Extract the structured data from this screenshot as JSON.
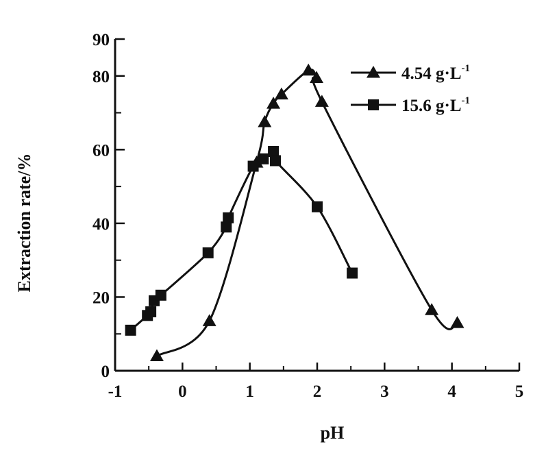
{
  "chart_data": {
    "type": "line",
    "xlabel": "pH",
    "ylabel": "Extraction rate/%",
    "xlim": [
      -1,
      5
    ],
    "ylim": [
      0,
      90
    ],
    "x_ticks": [
      "-1",
      "0",
      "1",
      "2",
      "3",
      "4",
      "5"
    ],
    "y_ticks": [
      "0",
      "20",
      "40",
      "60",
      "80",
      "90"
    ],
    "grid": false,
    "legend_position": "top-right",
    "series": [
      {
        "name": "4.54 g·L",
        "name_sup": "-1",
        "marker": "triangle",
        "x": [
          -0.38,
          0.4,
          1.1,
          1.22,
          1.35,
          1.47,
          1.87,
          1.99,
          2.07,
          3.7,
          4.08
        ],
        "y": [
          4,
          13.5,
          56.5,
          67.5,
          72.5,
          75,
          81.5,
          79.5,
          73,
          16.5,
          13
        ]
      },
      {
        "name": "15.6 g·L",
        "name_sup": "-1",
        "marker": "square",
        "x": [
          -0.77,
          -0.52,
          -0.47,
          -0.42,
          -0.32,
          0.38,
          0.65,
          0.68,
          1.05,
          1.2,
          1.35,
          1.38,
          2.0,
          2.52
        ],
        "y": [
          11,
          15,
          16,
          19,
          20.5,
          32,
          39,
          41.5,
          55.5,
          57.5,
          59.5,
          57,
          44.5,
          26.5
        ]
      }
    ]
  }
}
